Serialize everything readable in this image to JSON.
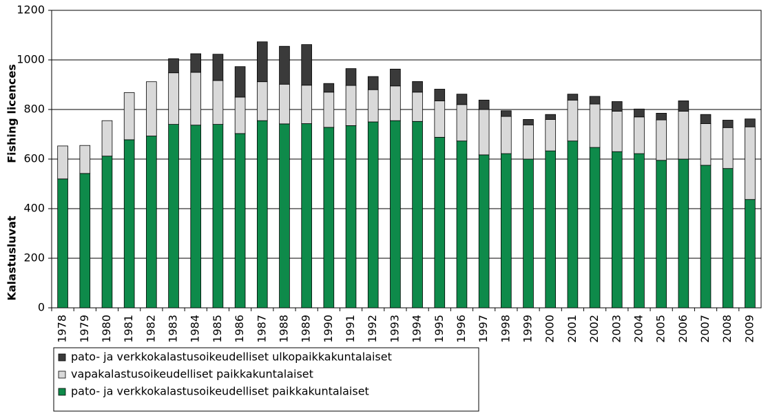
{
  "chart_data": {
    "type": "stacked_bar",
    "ylabel_fi": "Kalastusluvat",
    "ylabel_en": "Fishing licences",
    "categories": [
      "1978",
      "1979",
      "1980",
      "1981",
      "1982",
      "1983",
      "1984",
      "1985",
      "1986",
      "1987",
      "1988",
      "1989",
      "1990",
      "1991",
      "1992",
      "1993",
      "1994",
      "1995",
      "1996",
      "1997",
      "1998",
      "1999",
      "2000",
      "2001",
      "2002",
      "2003",
      "2004",
      "2005",
      "2006",
      "2007",
      "2008",
      "2009"
    ],
    "series": [
      {
        "name": "pato- ja verkkokalastusoikeudelliset paikkakuntalaiset",
        "color": "#0e8a4a",
        "values": [
          520,
          542,
          612,
          678,
          693,
          740,
          737,
          740,
          703,
          755,
          742,
          743,
          728,
          735,
          750,
          755,
          752,
          688,
          673,
          617,
          622,
          600,
          633,
          673,
          647,
          630,
          622,
          595,
          600,
          575,
          562,
          437
        ]
      },
      {
        "name": "vapakalastusoikeudelliset paikkakuntalaiset",
        "color": "#d9d9d9",
        "values": [
          133,
          113,
          143,
          190,
          219,
          208,
          213,
          177,
          147,
          157,
          160,
          155,
          142,
          162,
          130,
          140,
          118,
          147,
          147,
          183,
          150,
          138,
          127,
          165,
          175,
          163,
          148,
          163,
          193,
          168,
          165,
          293
        ]
      },
      {
        "name": "pato- ja verkkokalastusoikeudelliset ulkopaikkakuntalaiset",
        "color": "#3a3a3a",
        "values": [
          0,
          0,
          0,
          0,
          0,
          57,
          75,
          106,
          123,
          161,
          153,
          164,
          35,
          68,
          53,
          68,
          43,
          47,
          42,
          38,
          23,
          22,
          20,
          24,
          31,
          39,
          32,
          27,
          42,
          37,
          30,
          32
        ]
      }
    ],
    "ylim": [
      0,
      1200
    ],
    "yticks": [
      0,
      200,
      400,
      600,
      800,
      1000,
      1200
    ],
    "grid": true
  }
}
